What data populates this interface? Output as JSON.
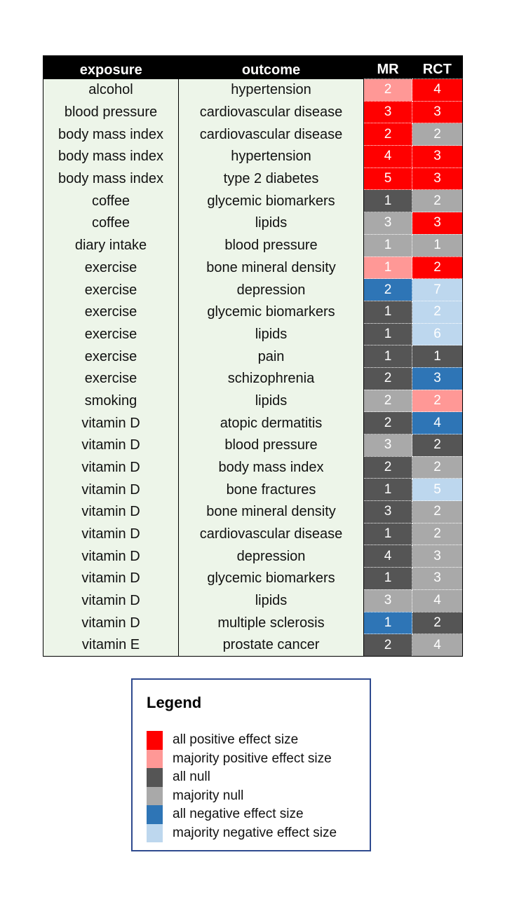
{
  "chart_data": {
    "type": "table",
    "columns": [
      "exposure",
      "outcome",
      "MR",
      "RCT"
    ],
    "categories": {
      "all_positive": {
        "label": "all positive effect size",
        "color": "#ff0000"
      },
      "majority_positive": {
        "label": "majority positive effect size",
        "color": "#ff9896"
      },
      "all_null": {
        "label": "all null",
        "color": "#555555"
      },
      "majority_null": {
        "label": "majority null",
        "color": "#a9a9a9"
      },
      "all_negative": {
        "label": "all negative effect size",
        "color": "#2e75b6"
      },
      "majority_negative": {
        "label": "majority negative effect size",
        "color": "#bdd7ee"
      }
    },
    "rows": [
      {
        "exposure": "alcohol",
        "outcome": "hypertension",
        "mr": {
          "n": "2",
          "cat": "majority_positive"
        },
        "rct": {
          "n": "4",
          "cat": "all_positive"
        }
      },
      {
        "exposure": "blood pressure",
        "outcome": "cardiovascular disease",
        "mr": {
          "n": "3",
          "cat": "all_positive"
        },
        "rct": {
          "n": "3",
          "cat": "all_positive"
        }
      },
      {
        "exposure": "body mass index",
        "outcome": "cardiovascular disease",
        "mr": {
          "n": "2",
          "cat": "all_positive"
        },
        "rct": {
          "n": "2",
          "cat": "majority_null"
        }
      },
      {
        "exposure": "body mass index",
        "outcome": "hypertension",
        "mr": {
          "n": "4",
          "cat": "all_positive"
        },
        "rct": {
          "n": "3",
          "cat": "all_positive"
        }
      },
      {
        "exposure": "body mass index",
        "outcome": "type 2 diabetes",
        "mr": {
          "n": "5",
          "cat": "all_positive"
        },
        "rct": {
          "n": "3",
          "cat": "all_positive"
        }
      },
      {
        "exposure": "coffee",
        "outcome": "glycemic biomarkers",
        "mr": {
          "n": "1",
          "cat": "all_null"
        },
        "rct": {
          "n": "2",
          "cat": "majority_null"
        }
      },
      {
        "exposure": "coffee",
        "outcome": "lipids",
        "mr": {
          "n": "3",
          "cat": "majority_null"
        },
        "rct": {
          "n": "3",
          "cat": "all_positive"
        }
      },
      {
        "exposure": "diary intake",
        "outcome": "blood pressure",
        "mr": {
          "n": "1",
          "cat": "majority_null"
        },
        "rct": {
          "n": "1",
          "cat": "majority_null"
        }
      },
      {
        "exposure": "exercise",
        "outcome": "bone mineral density",
        "mr": {
          "n": "1",
          "cat": "majority_positive"
        },
        "rct": {
          "n": "2",
          "cat": "all_positive"
        }
      },
      {
        "exposure": "exercise",
        "outcome": "depression",
        "mr": {
          "n": "2",
          "cat": "all_negative"
        },
        "rct": {
          "n": "7",
          "cat": "majority_negative"
        }
      },
      {
        "exposure": "exercise",
        "outcome": "glycemic biomarkers",
        "mr": {
          "n": "1",
          "cat": "all_null"
        },
        "rct": {
          "n": "2",
          "cat": "majority_negative"
        }
      },
      {
        "exposure": "exercise",
        "outcome": "lipids",
        "mr": {
          "n": "1",
          "cat": "all_null"
        },
        "rct": {
          "n": "6",
          "cat": "majority_negative"
        }
      },
      {
        "exposure": "exercise",
        "outcome": "pain",
        "mr": {
          "n": "1",
          "cat": "all_null"
        },
        "rct": {
          "n": "1",
          "cat": "all_null"
        }
      },
      {
        "exposure": "exercise",
        "outcome": "schizophrenia",
        "mr": {
          "n": "2",
          "cat": "all_null"
        },
        "rct": {
          "n": "3",
          "cat": "all_negative"
        }
      },
      {
        "exposure": "smoking",
        "outcome": "lipids",
        "mr": {
          "n": "2",
          "cat": "majority_null"
        },
        "rct": {
          "n": "2",
          "cat": "majority_positive"
        }
      },
      {
        "exposure": "vitamin D",
        "outcome": "atopic dermatitis",
        "mr": {
          "n": "2",
          "cat": "all_null"
        },
        "rct": {
          "n": "4",
          "cat": "all_negative"
        }
      },
      {
        "exposure": "vitamin D",
        "outcome": "blood pressure",
        "mr": {
          "n": "3",
          "cat": "majority_null"
        },
        "rct": {
          "n": "2",
          "cat": "all_null"
        }
      },
      {
        "exposure": "vitamin D",
        "outcome": "body mass index",
        "mr": {
          "n": "2",
          "cat": "all_null"
        },
        "rct": {
          "n": "2",
          "cat": "majority_null"
        }
      },
      {
        "exposure": "vitamin D",
        "outcome": "bone fractures",
        "mr": {
          "n": "1",
          "cat": "all_null"
        },
        "rct": {
          "n": "5",
          "cat": "majority_negative"
        }
      },
      {
        "exposure": "vitamin D",
        "outcome": "bone mineral density",
        "mr": {
          "n": "3",
          "cat": "all_null"
        },
        "rct": {
          "n": "2",
          "cat": "majority_null"
        }
      },
      {
        "exposure": "vitamin D",
        "outcome": "cardiovascular disease",
        "mr": {
          "n": "1",
          "cat": "all_null"
        },
        "rct": {
          "n": "2",
          "cat": "majority_null"
        }
      },
      {
        "exposure": "vitamin D",
        "outcome": "depression",
        "mr": {
          "n": "4",
          "cat": "all_null"
        },
        "rct": {
          "n": "3",
          "cat": "majority_null"
        }
      },
      {
        "exposure": "vitamin D",
        "outcome": "glycemic biomarkers",
        "mr": {
          "n": "1",
          "cat": "all_null"
        },
        "rct": {
          "n": "3",
          "cat": "majority_null"
        }
      },
      {
        "exposure": "vitamin D",
        "outcome": "lipids",
        "mr": {
          "n": "3",
          "cat": "majority_null"
        },
        "rct": {
          "n": "4",
          "cat": "majority_null"
        }
      },
      {
        "exposure": "vitamin D",
        "outcome": "multiple sclerosis",
        "mr": {
          "n": "1",
          "cat": "all_negative"
        },
        "rct": {
          "n": "2",
          "cat": "all_null"
        }
      },
      {
        "exposure": "vitamin E",
        "outcome": "prostate cancer",
        "mr": {
          "n": "2",
          "cat": "all_null"
        },
        "rct": {
          "n": "4",
          "cat": "majority_null"
        }
      }
    ],
    "legend": {
      "title": "Legend",
      "order": [
        "all_positive",
        "majority_positive",
        "all_null",
        "majority_null",
        "all_negative",
        "majority_negative"
      ]
    }
  }
}
